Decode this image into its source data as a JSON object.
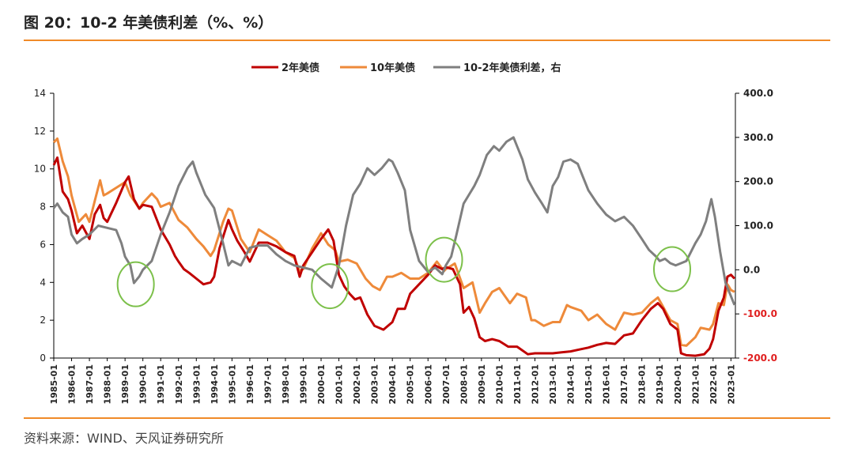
{
  "title": "图 20：10-2 年美债利差（%、%）",
  "source": "资料来源：WIND、天风证券研究所",
  "colors": {
    "accent": "#f08a28",
    "us2y": "#c00000",
    "us10y": "#ee8a3a",
    "spread": "#7f7f7f",
    "circle": "#7cc04a",
    "right_negative": "#e02020"
  },
  "chart_data": {
    "type": "line",
    "legend_position": "top",
    "grid": false,
    "y_left": {
      "lim": [
        0,
        14
      ],
      "ticks": [
        "0",
        "2",
        "4",
        "6",
        "8",
        "10",
        "12",
        "14"
      ]
    },
    "y_right": {
      "lim": [
        -200,
        400
      ],
      "ticks": [
        "-200.0",
        "-100.0",
        "0.0",
        "100.0",
        "200.0",
        "300.0",
        "400.0"
      ]
    },
    "x_range": [
      1985.0,
      2023.25
    ],
    "x_ticks": [
      "1985-01",
      "1986-01",
      "1987-01",
      "1988-01",
      "1989-01",
      "1990-01",
      "1991-01",
      "1992-01",
      "1993-01",
      "1994-01",
      "1995-01",
      "1996-01",
      "1997-01",
      "1998-01",
      "1999-01",
      "2000-01",
      "2001-01",
      "2002-01",
      "2003-01",
      "2004-01",
      "2005-01",
      "2006-01",
      "2007-01",
      "2008-01",
      "2009-01",
      "2010-01",
      "2011-01",
      "2012-01",
      "2013-01",
      "2014-01",
      "2015-01",
      "2016-01",
      "2017-01",
      "2018-01",
      "2019-01",
      "2020-01",
      "2021-01",
      "2022-01",
      "2023-01"
    ],
    "series": [
      {
        "name": "2年美债",
        "axis": "left",
        "x": [
          1985.0,
          1985.2,
          1985.5,
          1985.8,
          1986.0,
          1986.3,
          1986.6,
          1987.0,
          1987.3,
          1987.6,
          1987.8,
          1988.0,
          1988.5,
          1989.0,
          1989.2,
          1989.5,
          1989.8,
          1990.0,
          1990.5,
          1991.0,
          1991.5,
          1991.8,
          1992.0,
          1992.3,
          1992.6,
          1993.0,
          1993.4,
          1993.8,
          1994.0,
          1994.3,
          1994.8,
          1995.0,
          1995.3,
          1995.7,
          1996.0,
          1996.5,
          1997.0,
          1997.5,
          1998.0,
          1998.5,
          1998.8,
          1999.0,
          1999.5,
          2000.0,
          2000.4,
          2000.7,
          2001.0,
          2001.3,
          2001.6,
          2001.9,
          2002.2,
          2002.6,
          2003.0,
          2003.5,
          2004.0,
          2004.3,
          2004.7,
          2005.0,
          2005.5,
          2006.0,
          2006.4,
          2006.8,
          2007.0,
          2007.4,
          2007.8,
          2008.0,
          2008.3,
          2008.6,
          2008.9,
          2009.2,
          2009.6,
          2010.0,
          2010.5,
          2011.0,
          2011.6,
          2012.0,
          2012.5,
          2013.0,
          2013.5,
          2014.0,
          2014.5,
          2015.0,
          2015.5,
          2016.0,
          2016.5,
          2017.0,
          2017.5,
          2018.0,
          2018.5,
          2018.9,
          2019.2,
          2019.6,
          2020.0,
          2020.2,
          2020.5,
          2021.0,
          2021.5,
          2021.8,
          2022.0,
          2022.3,
          2022.6,
          2022.8,
          2023.0,
          2023.2
        ],
        "values": [
          10.2,
          10.6,
          8.8,
          8.4,
          7.8,
          6.6,
          7.0,
          6.3,
          7.6,
          8.1,
          7.4,
          7.2,
          8.2,
          9.3,
          9.6,
          8.4,
          7.9,
          8.1,
          8.0,
          6.8,
          6.0,
          5.4,
          5.1,
          4.7,
          4.5,
          4.2,
          3.9,
          4.0,
          4.3,
          5.8,
          7.3,
          6.8,
          6.2,
          5.6,
          5.1,
          6.1,
          6.1,
          5.9,
          5.6,
          5.4,
          4.3,
          4.9,
          5.6,
          6.3,
          6.8,
          6.2,
          4.4,
          3.8,
          3.4,
          3.1,
          3.2,
          2.3,
          1.7,
          1.5,
          1.9,
          2.6,
          2.6,
          3.4,
          3.9,
          4.4,
          4.9,
          4.7,
          4.8,
          4.7,
          3.9,
          2.4,
          2.7,
          2.1,
          1.1,
          0.9,
          1.0,
          0.9,
          0.6,
          0.6,
          0.2,
          0.25,
          0.25,
          0.25,
          0.3,
          0.35,
          0.45,
          0.55,
          0.7,
          0.8,
          0.75,
          1.2,
          1.3,
          2.0,
          2.6,
          2.9,
          2.6,
          1.8,
          1.5,
          0.25,
          0.15,
          0.12,
          0.2,
          0.5,
          1.0,
          2.5,
          3.2,
          4.3,
          4.4,
          4.2
        ]
      },
      {
        "name": "10年美债",
        "axis": "left",
        "x": [
          1985.0,
          1985.2,
          1985.5,
          1985.8,
          1986.0,
          1986.4,
          1986.8,
          1987.0,
          1987.3,
          1987.6,
          1987.8,
          1988.0,
          1988.5,
          1989.0,
          1989.3,
          1989.8,
          1990.0,
          1990.5,
          1990.8,
          1991.0,
          1991.5,
          1992.0,
          1992.5,
          1993.0,
          1993.4,
          1993.8,
          1994.0,
          1994.5,
          1994.8,
          1995.0,
          1995.5,
          1996.0,
          1996.5,
          1997.0,
          1997.5,
          1998.0,
          1998.5,
          1998.8,
          1999.0,
          1999.5,
          2000.0,
          2000.4,
          2000.8,
          2001.0,
          2001.5,
          2002.0,
          2002.5,
          2002.9,
          2003.3,
          2003.7,
          2004.0,
          2004.5,
          2005.0,
          2005.5,
          2006.0,
          2006.5,
          2006.9,
          2007.0,
          2007.5,
          2008.0,
          2008.5,
          2008.9,
          2009.2,
          2009.6,
          2010.0,
          2010.6,
          2011.0,
          2011.5,
          2011.8,
          2012.0,
          2012.5,
          2013.0,
          2013.4,
          2013.8,
          2014.0,
          2014.6,
          2015.0,
          2015.5,
          2016.0,
          2016.5,
          2017.0,
          2017.5,
          2018.0,
          2018.5,
          2018.9,
          2019.2,
          2019.6,
          2020.0,
          2020.2,
          2020.5,
          2021.0,
          2021.3,
          2021.8,
          2022.0,
          2022.3,
          2022.6,
          2022.8,
          2023.0,
          2023.2
        ],
        "values": [
          11.4,
          11.6,
          10.4,
          9.6,
          8.6,
          7.2,
          7.6,
          7.2,
          8.3,
          9.4,
          8.6,
          8.7,
          9.0,
          9.3,
          8.6,
          7.9,
          8.2,
          8.7,
          8.4,
          8.0,
          8.2,
          7.3,
          6.9,
          6.3,
          5.9,
          5.4,
          5.7,
          7.2,
          7.9,
          7.8,
          6.3,
          5.6,
          6.8,
          6.5,
          6.2,
          5.6,
          5.3,
          4.6,
          4.7,
          5.8,
          6.6,
          6.0,
          5.7,
          5.1,
          5.2,
          5.0,
          4.2,
          3.8,
          3.6,
          4.3,
          4.3,
          4.5,
          4.2,
          4.2,
          4.5,
          5.1,
          4.6,
          4.7,
          5.0,
          3.7,
          4.0,
          2.4,
          2.9,
          3.5,
          3.7,
          2.9,
          3.4,
          3.2,
          2.0,
          2.0,
          1.7,
          1.9,
          1.9,
          2.8,
          2.7,
          2.5,
          2.0,
          2.3,
          1.8,
          1.5,
          2.4,
          2.3,
          2.4,
          2.9,
          3.2,
          2.7,
          2.0,
          1.8,
          0.7,
          0.65,
          1.1,
          1.6,
          1.5,
          1.8,
          2.9,
          2.8,
          3.9,
          3.6,
          3.5
        ]
      },
      {
        "name": "10-2年美债利差，右",
        "axis": "right",
        "x": [
          1985.0,
          1985.2,
          1985.5,
          1985.8,
          1986.0,
          1986.3,
          1986.6,
          1987.0,
          1987.5,
          1988.0,
          1988.5,
          1988.8,
          1989.0,
          1989.3,
          1989.5,
          1989.8,
          1990.0,
          1990.5,
          1991.0,
          1991.5,
          1992.0,
          1992.5,
          1992.8,
          1993.0,
          1993.5,
          1994.0,
          1994.5,
          1994.8,
          1995.0,
          1995.5,
          1996.0,
          1996.5,
          1997.0,
          1997.5,
          1998.0,
          1998.5,
          1999.0,
          1999.5,
          2000.0,
          2000.3,
          2000.6,
          2001.0,
          2001.4,
          2001.8,
          2002.2,
          2002.6,
          2003.0,
          2003.4,
          2003.8,
          2004.0,
          2004.3,
          2004.7,
          2005.0,
          2005.5,
          2005.8,
          2006.0,
          2006.4,
          2006.8,
          2007.0,
          2007.3,
          2007.6,
          2008.0,
          2008.3,
          2008.6,
          2008.9,
          2009.3,
          2009.7,
          2010.0,
          2010.4,
          2010.8,
          2011.0,
          2011.3,
          2011.6,
          2012.0,
          2012.4,
          2012.7,
          2013.0,
          2013.3,
          2013.6,
          2014.0,
          2014.4,
          2014.8,
          2015.0,
          2015.5,
          2016.0,
          2016.5,
          2017.0,
          2017.5,
          2018.0,
          2018.4,
          2018.8,
          2019.0,
          2019.3,
          2019.6,
          2019.9,
          2020.2,
          2020.5,
          2021.0,
          2021.3,
          2021.6,
          2021.9,
          2022.1,
          2022.4,
          2022.7,
          2023.0,
          2023.2
        ],
        "values": [
          140,
          150,
          130,
          120,
          80,
          60,
          70,
          80,
          100,
          95,
          90,
          60,
          30,
          10,
          -30,
          -15,
          0,
          20,
          80,
          130,
          190,
          230,
          245,
          220,
          170,
          140,
          60,
          10,
          20,
          10,
          50,
          55,
          55,
          35,
          20,
          10,
          5,
          0,
          -20,
          -30,
          -40,
          10,
          100,
          170,
          195,
          230,
          215,
          230,
          250,
          245,
          220,
          180,
          90,
          20,
          5,
          -5,
          5,
          -10,
          10,
          30,
          80,
          150,
          170,
          190,
          215,
          260,
          280,
          270,
          290,
          300,
          280,
          250,
          205,
          175,
          150,
          130,
          190,
          210,
          245,
          250,
          240,
          200,
          180,
          150,
          125,
          110,
          120,
          100,
          70,
          45,
          30,
          20,
          25,
          15,
          10,
          15,
          20,
          60,
          80,
          110,
          160,
          120,
          40,
          -30,
          -60,
          -80
        ]
      }
    ],
    "annotations": [
      {
        "type": "ellipse",
        "cx": 1989.6,
        "cy_left": 3.9
      },
      {
        "type": "ellipse",
        "cx": 2000.5,
        "cy_left": 3.8
      },
      {
        "type": "ellipse",
        "cx": 2006.9,
        "cy_left": 5.2
      },
      {
        "type": "ellipse",
        "cx": 2019.7,
        "cy_left": 4.7
      }
    ]
  }
}
